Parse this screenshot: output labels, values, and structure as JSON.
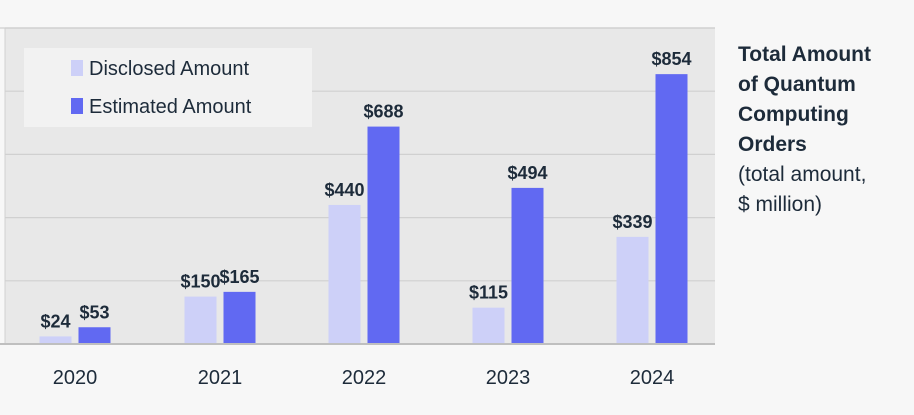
{
  "colors": {
    "page_background": "#f7f7f7",
    "plot_background": "#e8e8e8",
    "gridline": "#d0d0d0",
    "axis": "#bfbfbf",
    "disclosed": "#cdd0f8",
    "estimated": "#6169f2",
    "text": "#1d2b3a",
    "legend_box": "#f2f2f2"
  },
  "side_title": {
    "line1": "Total Amount",
    "line2": "of Quantum",
    "line3": "Computing",
    "line4": "Orders",
    "line5": "(total amount,",
    "line6": "$ million)"
  },
  "chart_data": {
    "type": "bar",
    "categories": [
      "2020",
      "2021",
      "2022",
      "2023",
      "2024"
    ],
    "series": [
      {
        "name": "Disclosed Amount",
        "values": [
          24,
          150,
          440,
          115,
          339
        ],
        "labels": [
          "$24",
          "$150",
          "$440",
          "$115",
          "$339"
        ]
      },
      {
        "name": "Estimated Amount",
        "values": [
          53,
          165,
          688,
          494,
          854
        ],
        "labels": [
          "$53",
          "$165",
          "$688",
          "$494",
          "$854"
        ]
      }
    ],
    "ylim": [
      0,
      1000
    ],
    "grid": true,
    "legend": "top-left"
  }
}
